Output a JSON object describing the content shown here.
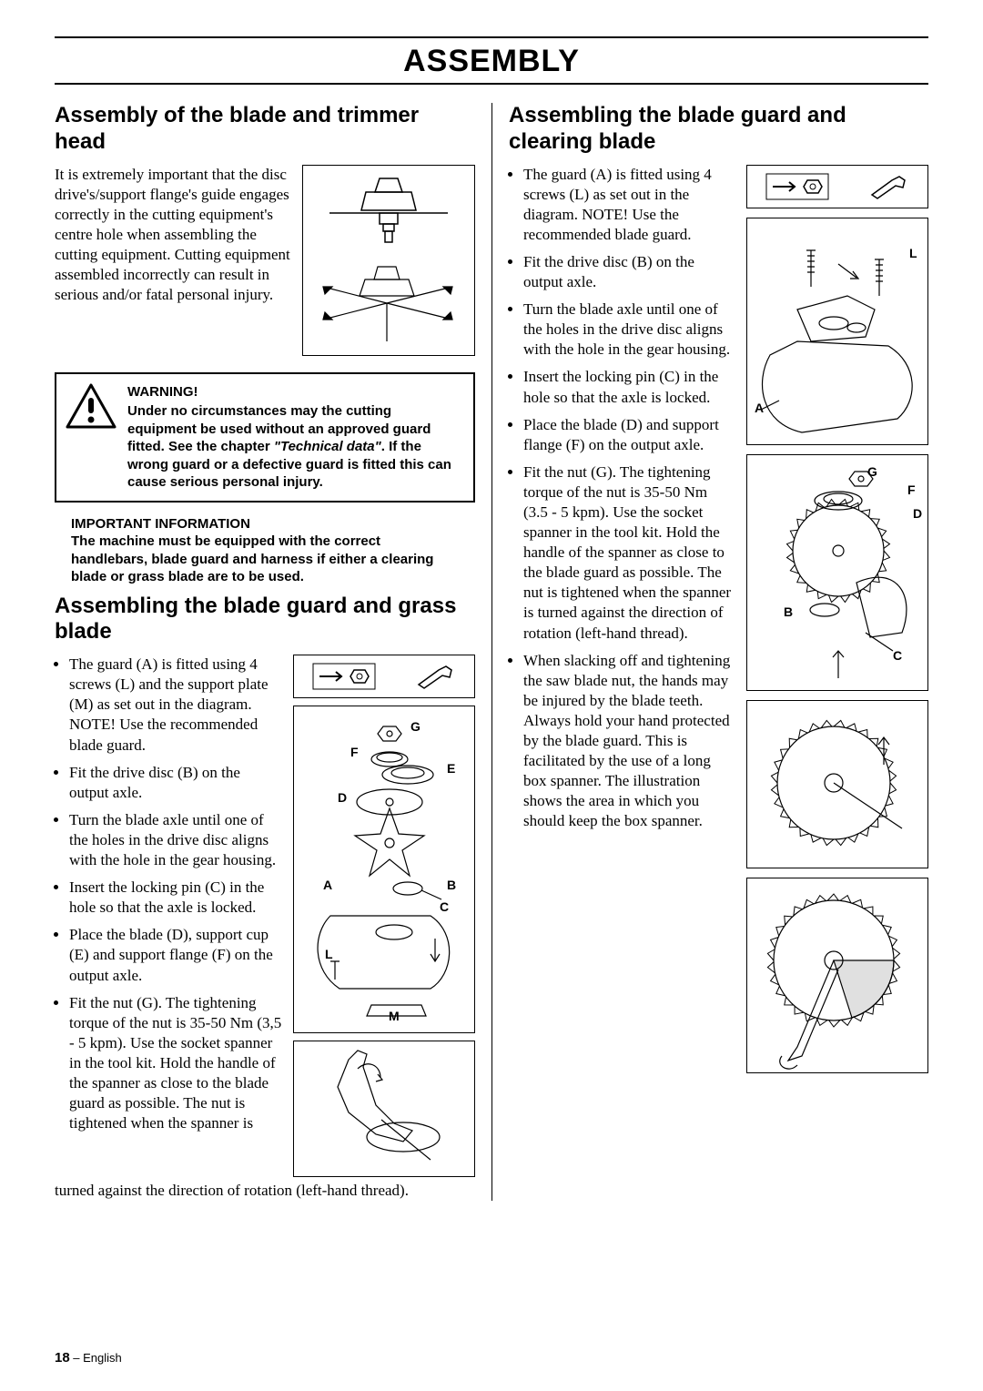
{
  "page": {
    "title": "ASSEMBLY",
    "footer_page": "18",
    "footer_lang": " – English"
  },
  "left": {
    "h1": "Assembly of the blade and trimmer head",
    "intro": "It is extremely important that the disc drive's/support flange's guide engages correctly in the cutting equipment's centre hole when assembling the cutting equipment. Cutting equipment assembled incorrectly can result in serious and/or fatal personal injury.",
    "warning": {
      "title": "WARNING!",
      "body_pre": "Under no circumstances may the cutting equipment be used without an approved guard fitted. See the chapter ",
      "tech": "\"Technical data\"",
      "body_post": ". If the wrong guard or a defective guard is fitted this can cause serious personal injury."
    },
    "important": {
      "title": "IMPORTANT INFORMATION",
      "body": "The machine must be equipped with the correct handlebars, blade guard and harness if either a clearing blade or grass blade are to be used."
    },
    "h2": "Assembling the blade guard and grass blade",
    "bullets": [
      "The guard (A) is fitted using 4 screws (L) and the support plate (M) as set out in the diagram. NOTE! Use the recommended blade guard.",
      "Fit the drive disc (B) on the output axle.",
      "Turn the blade axle until one of the holes in the drive disc aligns with the hole in the gear housing.",
      "Insert the locking pin (C) in the hole so that the axle is locked.",
      "Place the blade (D), support cup (E) and support flange (F) on the output axle.",
      "Fit the nut (G). The tightening torque of the nut is 35-50 Nm (3,5 - 5 kpm). Use the socket spanner in the tool kit. Hold the handle of the spanner as close to the blade guard as possible. The nut is tightened when the spanner is"
    ],
    "continuation": "turned against the direction of rotation (left-hand thread).",
    "labels": {
      "A": "A",
      "B": "B",
      "C": "C",
      "D": "D",
      "E": "E",
      "F": "F",
      "G": "G",
      "L": "L",
      "M": "M"
    }
  },
  "right": {
    "h1": "Assembling the blade guard and clearing blade",
    "bullets": [
      "The guard (A) is fitted using 4 screws (L) as set out in the diagram. NOTE! Use the recommended blade guard.",
      "Fit the drive disc (B) on the output axle.",
      "Turn the blade axle until one of the holes in the drive disc aligns with the hole in the gear housing.",
      "Insert the locking pin (C) in the hole so that the axle is locked.",
      "Place the blade (D) and support flange (F) on the output axle.",
      "Fit the nut (G). The tightening torque of the nut is 35-50 Nm (3.5 - 5 kpm). Use the socket spanner in the tool kit. Hold the handle of the spanner as close to the blade guard as possible. The nut is tightened when the spanner is turned against the direction of rotation (left-hand thread).",
      "When slacking off and tightening the saw blade nut, the hands may be injured by the blade teeth. Always hold your hand protected by the blade guard. This is facilitated by the use of a long box spanner. The illustration shows the area in which you should keep the box spanner."
    ],
    "labels": {
      "A": "A",
      "B": "B",
      "C": "C",
      "D": "D",
      "F": "F",
      "G": "G",
      "L": "L"
    }
  }
}
